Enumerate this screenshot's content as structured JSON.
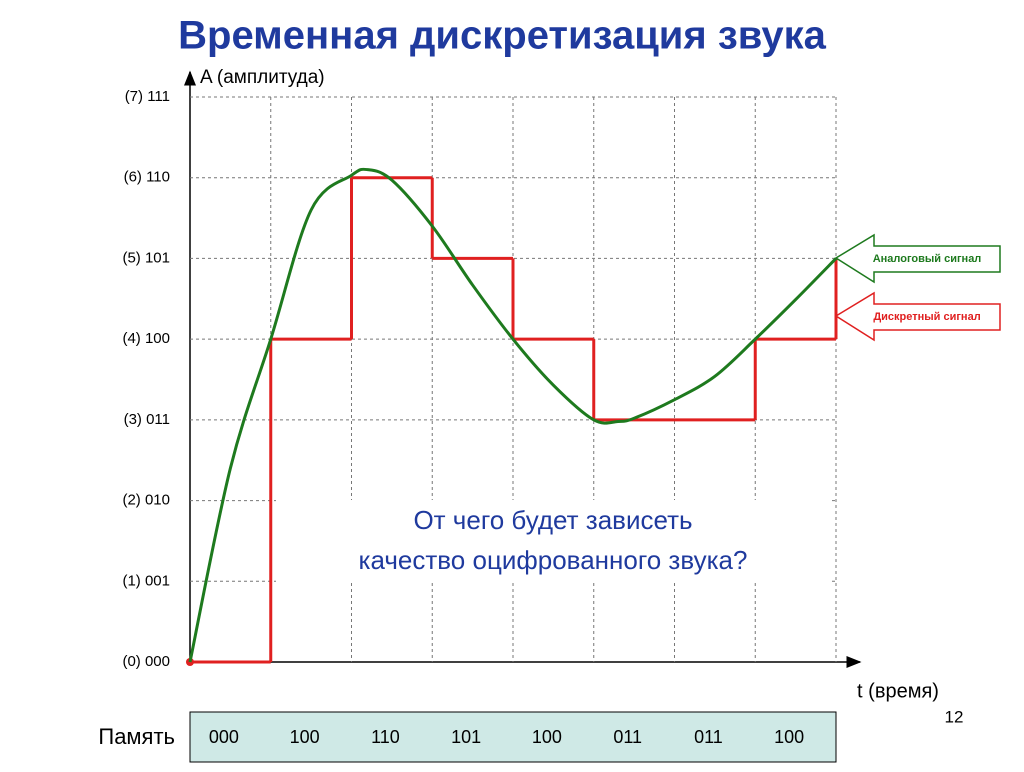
{
  "chart_data": {
    "type": "line",
    "title": "Временная дискретизация звука",
    "y_label": "A (амплитуда)",
    "x_label": "t (время)",
    "annotation": [
      "От чего будет зависеть",
      "качество оцифрованного звука?"
    ],
    "page_number": "12",
    "xlim": [
      0,
      8
    ],
    "ylim": [
      0,
      7
    ],
    "xticks": [
      0,
      1,
      2,
      3,
      4,
      5,
      6,
      7,
      8
    ],
    "yticks": [
      {
        "value": 0,
        "label": "(0)  000"
      },
      {
        "value": 1,
        "label": "(1)  001"
      },
      {
        "value": 2,
        "label": "(2)  010"
      },
      {
        "value": 3,
        "label": "(3)  011"
      },
      {
        "value": 4,
        "label": "(4)  100"
      },
      {
        "value": 5,
        "label": "(5)  101"
      },
      {
        "value": 6,
        "label": "(6)  110"
      },
      {
        "value": 7,
        "label": "(7)  111"
      }
    ],
    "grid": true,
    "series": [
      {
        "name": "Аналоговый сигнал",
        "color": "#1e7a1e",
        "style": "smooth",
        "x": [
          0,
          0.5,
          1,
          1.5,
          2,
          2.2,
          2.5,
          3,
          3.5,
          4,
          4.5,
          5,
          5.3,
          5.5,
          6,
          6.5,
          7,
          7.5,
          8
        ],
        "values": [
          0,
          2.4,
          4,
          5.6,
          6.03,
          6.1,
          5.97,
          5.4,
          4.67,
          4,
          3.43,
          3,
          2.98,
          3.02,
          3.25,
          3.54,
          4,
          4.49,
          5
        ]
      },
      {
        "name": "Дискретный сигнал",
        "color": "#e02020",
        "style": "step",
        "x": [
          0,
          1,
          2,
          3,
          4,
          5,
          6,
          7,
          8
        ],
        "values": [
          0,
          4,
          6,
          5,
          4,
          3,
          3,
          4,
          5
        ]
      }
    ],
    "memory": {
      "label": "Память",
      "cells": [
        "000",
        "100",
        "110",
        "101",
        "100",
        "011",
        "011",
        "100"
      ]
    }
  }
}
